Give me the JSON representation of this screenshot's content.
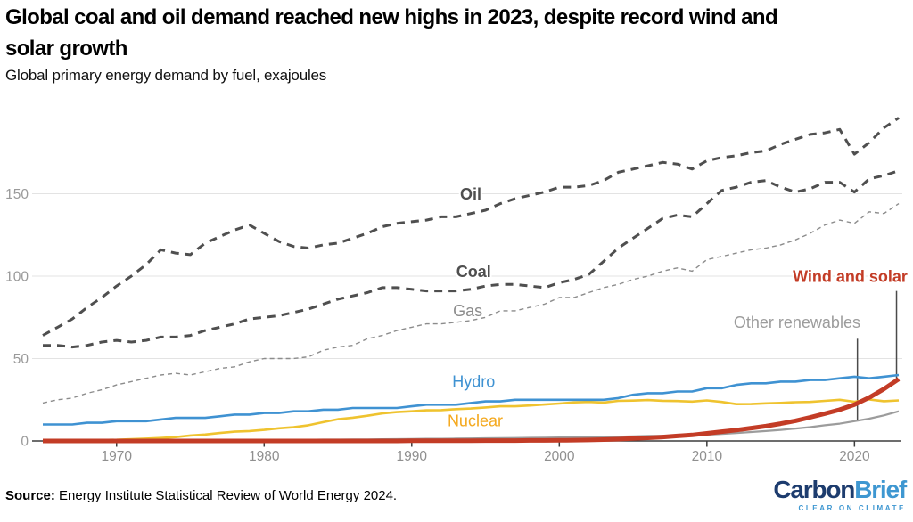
{
  "title": {
    "line1": "Global coal and oil demand reached new highs in 2023, despite record wind and",
    "line2": "solar growth"
  },
  "subtitle": "Global primary energy demand by fuel, exajoules",
  "source": {
    "label": "Source:",
    "text": " Energy Institute Statistical Review of World Energy 2024."
  },
  "logo": {
    "part1": "Carbon",
    "part2": "Brief",
    "tagline": "CLEAR ON CLIMATE",
    "color1": "#1d3c6e",
    "color2": "#3e97d1"
  },
  "chart_data": {
    "type": "line",
    "title": "Global coal and oil demand reached new highs in 2023, despite record wind and solar growth",
    "subtitle": "Global primary energy demand by fuel, exajoules",
    "units": "exajoules",
    "xlabel": "",
    "ylabel": "",
    "x_ticks": [
      1970,
      1980,
      1990,
      2000,
      2010,
      2020
    ],
    "y_ticks": [
      0,
      50,
      100,
      150
    ],
    "x_range": [
      1965,
      2023
    ],
    "y_range": [
      0,
      200
    ],
    "grid": "horizontal",
    "legend_position": "inline-labels",
    "years": [
      1965,
      1966,
      1967,
      1968,
      1969,
      1970,
      1971,
      1972,
      1973,
      1974,
      1975,
      1976,
      1977,
      1978,
      1979,
      1980,
      1981,
      1982,
      1983,
      1984,
      1985,
      1986,
      1987,
      1988,
      1989,
      1990,
      1991,
      1992,
      1993,
      1994,
      1995,
      1996,
      1997,
      1998,
      1999,
      2000,
      2001,
      2002,
      2003,
      2004,
      2005,
      2006,
      2007,
      2008,
      2009,
      2010,
      2011,
      2012,
      2013,
      2014,
      2015,
      2016,
      2017,
      2018,
      2019,
      2020,
      2021,
      2022,
      2023
    ],
    "series": [
      {
        "name": "Gas",
        "color": "#8c8c8c",
        "width": 1.4,
        "dash": "5 4",
        "values": [
          23,
          25,
          26,
          29,
          31,
          34,
          36,
          38,
          40,
          41,
          40,
          42,
          44,
          45,
          48,
          50,
          50,
          50,
          51,
          55,
          57,
          58,
          62,
          64,
          67,
          69,
          71,
          71,
          72,
          73,
          75,
          79,
          79,
          81,
          83,
          87,
          87,
          90,
          93,
          95,
          98,
          100,
          103,
          105,
          103,
          110,
          112,
          114,
          116,
          117,
          119,
          122,
          126,
          131,
          134,
          132,
          139,
          138,
          144
        ]
      },
      {
        "name": "Coal",
        "color": "#4f4f4f",
        "width": 3,
        "dash": "9 7",
        "values": [
          58,
          58,
          57,
          58,
          60,
          61,
          60,
          61,
          63,
          63,
          64,
          67,
          69,
          71,
          74,
          75,
          76,
          78,
          80,
          83,
          86,
          88,
          90,
          93,
          93,
          92,
          91,
          91,
          91,
          92,
          94,
          95,
          95,
          94,
          93,
          96,
          98,
          101,
          109,
          117,
          123,
          129,
          135,
          137,
          136,
          144,
          152,
          154,
          157,
          158,
          154,
          151,
          153,
          157,
          157,
          151,
          159,
          161,
          164
        ]
      },
      {
        "name": "Oil",
        "color": "#4f4f4f",
        "width": 3,
        "dash": "9 7",
        "values": [
          64,
          69,
          74,
          81,
          87,
          94,
          100,
          107,
          116,
          114,
          113,
          120,
          124,
          128,
          131,
          126,
          121,
          118,
          117,
          119,
          120,
          123,
          126,
          130,
          132,
          133,
          134,
          136,
          136,
          138,
          140,
          144,
          147,
          149,
          151,
          154,
          154,
          155,
          158,
          163,
          165,
          167,
          169,
          168,
          165,
          170,
          172,
          173,
          175,
          176,
          180,
          183,
          186,
          187,
          189,
          174,
          181,
          190,
          196
        ]
      },
      {
        "name": "Other renewables",
        "color": "#9c9c9c",
        "width": 2.2,
        "dash": "",
        "values": [
          0.2,
          0.2,
          0.2,
          0.2,
          0.3,
          0.3,
          0.3,
          0.3,
          0.4,
          0.4,
          0.4,
          0.5,
          0.5,
          0.5,
          0.6,
          0.6,
          0.6,
          0.7,
          0.7,
          0.8,
          0.8,
          0.9,
          0.9,
          1,
          1.1,
          1.2,
          1.3,
          1.3,
          1.4,
          1.5,
          1.6,
          1.7,
          1.8,
          1.9,
          2,
          2.1,
          2.2,
          2.3,
          2.4,
          2.6,
          2.8,
          3,
          3.1,
          3.3,
          3.5,
          3.8,
          4.2,
          4.8,
          5.4,
          6,
          6.7,
          7.5,
          8.4,
          9.5,
          10.5,
          12,
          13.5,
          15.5,
          18
        ]
      },
      {
        "name": "Nuclear",
        "color": "#efc32f",
        "width": 2.6,
        "dash": "",
        "values": [
          0.2,
          0.3,
          0.4,
          0.5,
          0.6,
          0.7,
          1,
          1.4,
          1.8,
          2.3,
          3.3,
          3.9,
          4.8,
          5.6,
          6,
          6.7,
          7.7,
          8.3,
          9.5,
          11.4,
          13.2,
          14.1,
          15.3,
          16.7,
          17.5,
          18,
          18.6,
          18.7,
          19.3,
          19.7,
          20.3,
          21,
          21,
          21.5,
          22.1,
          22.7,
          23.4,
          23.7,
          23.3,
          24.3,
          24.5,
          24.8,
          24.4,
          24.2,
          23.9,
          24.6,
          23.7,
          22.3,
          22.4,
          22.8,
          23.1,
          23.5,
          23.7,
          24.3,
          25,
          23.8,
          25.2,
          24.1,
          24.6
        ]
      },
      {
        "name": "Hydro",
        "color": "#3f92d2",
        "width": 2.6,
        "dash": "",
        "values": [
          10,
          10,
          10,
          11,
          11,
          12,
          12,
          12,
          13,
          14,
          14,
          14,
          15,
          16,
          16,
          17,
          17,
          18,
          18,
          19,
          19,
          20,
          20,
          20,
          20,
          21,
          22,
          22,
          22,
          23,
          24,
          24,
          25,
          25,
          25,
          25,
          25,
          25,
          25,
          26,
          28,
          29,
          29,
          30,
          30,
          32,
          32,
          34,
          35,
          35,
          36,
          36,
          37,
          37,
          38,
          39,
          38,
          39,
          40
        ]
      },
      {
        "name": "Wind and solar",
        "color": "#c33c26",
        "width": 5,
        "dash": "",
        "values": [
          0,
          0,
          0,
          0,
          0,
          0,
          0,
          0,
          0,
          0,
          0,
          0,
          0,
          0,
          0,
          0,
          0,
          0,
          0,
          0,
          0,
          0,
          0,
          0,
          0,
          0.1,
          0.1,
          0.1,
          0.1,
          0.1,
          0.2,
          0.2,
          0.2,
          0.3,
          0.3,
          0.4,
          0.5,
          0.6,
          0.8,
          1.1,
          1.5,
          1.9,
          2.4,
          3,
          3.6,
          4.6,
          5.6,
          6.6,
          7.8,
          9,
          10.5,
          12.2,
          14.3,
          16.6,
          19,
          22,
          26.3,
          31.5,
          37.5
        ]
      }
    ],
    "labels": [
      {
        "text": "Oil",
        "year": 1994,
        "value": 150,
        "anchor": "middle",
        "bold": true,
        "color": "#4f4f4f"
      },
      {
        "text": "Coal",
        "year": 1994.2,
        "value": 103,
        "anchor": "middle",
        "bold": true,
        "color": "#4f4f4f"
      },
      {
        "text": "Gas",
        "year": 1993.8,
        "value": 79,
        "anchor": "middle",
        "bold": false,
        "color": "#8c8c8c"
      },
      {
        "text": "Hydro",
        "year": 1994.2,
        "value": 36,
        "anchor": "middle",
        "bold": false,
        "color": "#3f92d2"
      },
      {
        "text": "Nuclear",
        "year": 1994.3,
        "value": 12.3,
        "anchor": "middle",
        "bold": false,
        "color": "#f4a81d"
      },
      {
        "text": "Wind and solar",
        "year": 2023.6,
        "value": 100,
        "anchor": "end",
        "bold": true,
        "color": "#c33c26"
      },
      {
        "text": "Other renewables",
        "year": 2020.4,
        "value": 72,
        "anchor": "end",
        "bold": false,
        "color": "#9c9c9c"
      }
    ],
    "annotations": [
      {
        "name": "wind-and-solar-pointer",
        "year": 2022.85,
        "value_top": 91,
        "value_bottom": 36.8
      },
      {
        "name": "other-renewables-pointer",
        "year": 2020.2,
        "value_top": 62,
        "value_bottom": 12.5
      }
    ],
    "axis_color": "#3d3d3d",
    "grid_color": "#e3e3e3",
    "tick_label_color": "#8f8f8f"
  }
}
